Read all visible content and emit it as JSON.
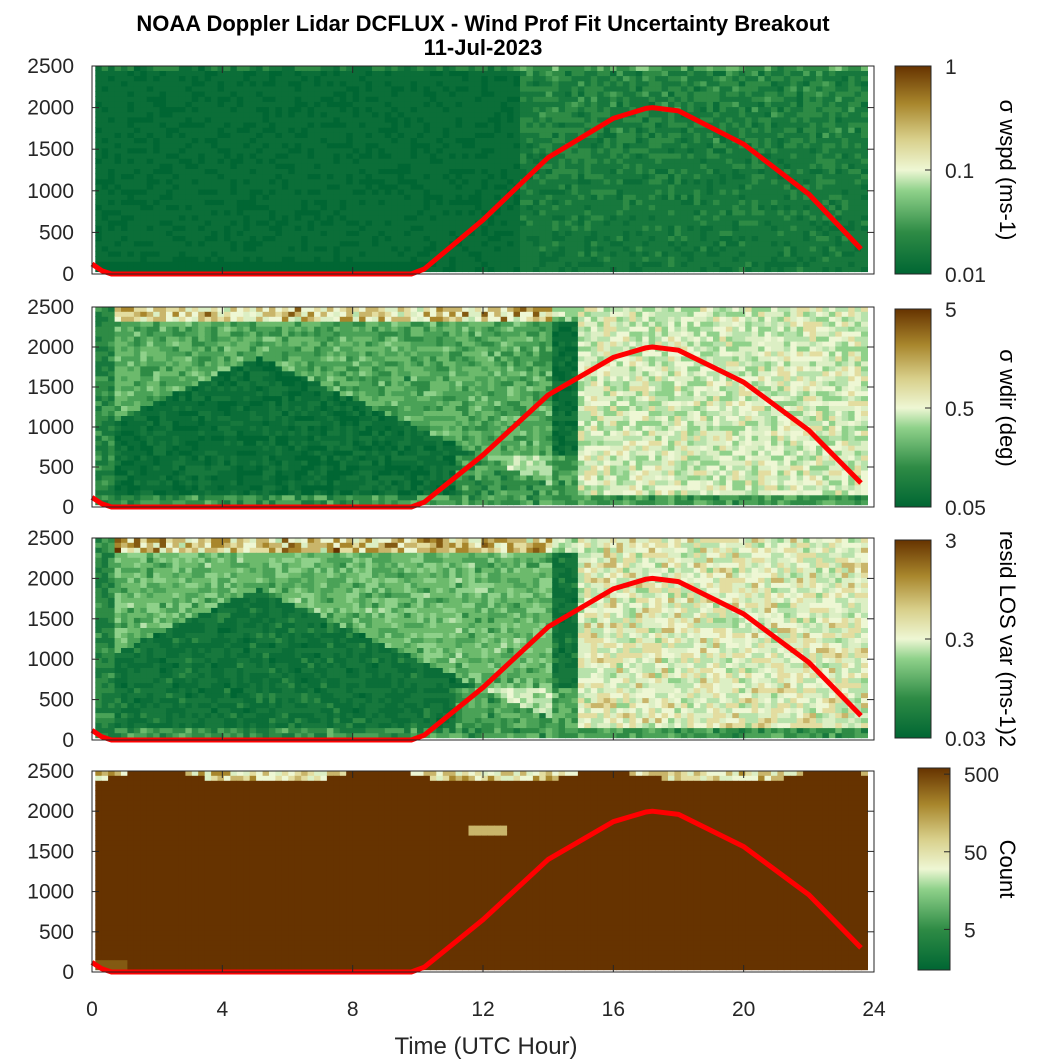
{
  "figure": {
    "title_line1": "NOAA Doppler Lidar DCFLUX - Wind Prof Fit Uncertainty Breakout",
    "title_line2": "11-Jul-2023",
    "xlabel": "Time (UTC Hour)",
    "colors": {
      "curve": "#ff0000",
      "green_dark": "#006633",
      "brown_dark": "#663300"
    }
  },
  "chart_data": [
    {
      "type": "heatmap",
      "panel": "sigma-wspd",
      "x_range": [
        0,
        24
      ],
      "y_ticks": [
        "0",
        "500",
        "1000",
        "1500",
        "2000",
        "2500"
      ],
      "ylim": [
        0,
        2500
      ],
      "colorbar": {
        "label": "σ wspd (ms-1)",
        "scale": "log",
        "ticks": [
          "0.01",
          "0.1",
          "1"
        ],
        "range": [
          0.01,
          1
        ]
      },
      "curve": {
        "x": [
          0,
          0.3,
          0.6,
          1,
          2,
          4,
          6,
          8,
          9.8,
          10.2,
          12,
          14,
          16,
          17,
          17.2,
          18,
          20,
          22,
          23.6
        ],
        "y": [
          120,
          40,
          0,
          0,
          0,
          0,
          0,
          0,
          0,
          60,
          650,
          1400,
          1870,
          1990,
          2000,
          1960,
          1560,
          960,
          300
        ]
      }
    },
    {
      "type": "heatmap",
      "panel": "sigma-wdir",
      "x_range": [
        0,
        24
      ],
      "y_ticks": [
        "0",
        "500",
        "1000",
        "1500",
        "2000",
        "2500"
      ],
      "ylim": [
        0,
        2500
      ],
      "colorbar": {
        "label": "σ wdir (deg)",
        "scale": "log",
        "ticks": [
          "0.05",
          "0.5",
          "5"
        ],
        "range": [
          0.05,
          5
        ]
      },
      "curve": {
        "x": [
          0,
          0.3,
          0.6,
          1,
          2,
          4,
          6,
          8,
          9.8,
          10.2,
          12,
          14,
          16,
          17,
          17.2,
          18,
          20,
          22,
          23.6
        ],
        "y": [
          120,
          40,
          0,
          0,
          0,
          0,
          0,
          0,
          0,
          60,
          650,
          1400,
          1870,
          1990,
          2000,
          1960,
          1560,
          960,
          300
        ]
      }
    },
    {
      "type": "heatmap",
      "panel": "resid-los-var",
      "x_range": [
        0,
        24
      ],
      "y_ticks": [
        "0",
        "500",
        "1000",
        "1500",
        "2000",
        "2500"
      ],
      "ylim": [
        0,
        2500
      ],
      "colorbar": {
        "label": "resid LOS var (ms-1)2",
        "scale": "log",
        "ticks": [
          "0.03",
          "0.3",
          "3"
        ],
        "range": [
          0.03,
          3
        ]
      },
      "curve": {
        "x": [
          0,
          0.3,
          0.6,
          1,
          2,
          4,
          6,
          8,
          9.8,
          10.2,
          12,
          14,
          16,
          17,
          17.2,
          18,
          20,
          22,
          23.6
        ],
        "y": [
          120,
          40,
          0,
          0,
          0,
          0,
          0,
          0,
          0,
          60,
          650,
          1400,
          1870,
          1990,
          2000,
          1960,
          1560,
          960,
          300
        ]
      }
    },
    {
      "type": "heatmap",
      "panel": "count",
      "x_range": [
        0,
        24
      ],
      "x_ticks": [
        "0",
        "4",
        "8",
        "12",
        "16",
        "20",
        "24"
      ],
      "y_ticks": [
        "0",
        "500",
        "1000",
        "1500",
        "2000",
        "2500"
      ],
      "ylim": [
        0,
        2500
      ],
      "colorbar": {
        "label": "Count",
        "scale": "log",
        "ticks": [
          "5",
          "50",
          "500"
        ],
        "range": [
          1.5,
          600
        ]
      },
      "curve": {
        "x": [
          0,
          0.3,
          0.6,
          1,
          2,
          4,
          6,
          8,
          9.8,
          10.2,
          12,
          14,
          16,
          17,
          17.2,
          18,
          20,
          22,
          23.6
        ],
        "y": [
          120,
          40,
          0,
          0,
          0,
          0,
          0,
          0,
          0,
          60,
          650,
          1400,
          1870,
          1990,
          2000,
          1960,
          1560,
          960,
          300
        ]
      }
    }
  ]
}
